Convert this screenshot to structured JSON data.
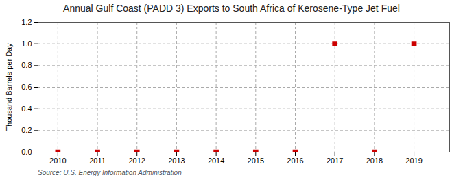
{
  "chart_data": {
    "type": "scatter",
    "title": "Annual Gulf Coast (PADD 3) Exports to South Africa of Kerosene-Type Jet Fuel",
    "ylabel": "Thousand Barrels per Day",
    "annotations": [
      "Source: U.S. Energy Information Administration"
    ],
    "x": [
      2010,
      2011,
      2012,
      2013,
      2014,
      2015,
      2016,
      2017,
      2018,
      2019
    ],
    "values": [
      0.0,
      0.0,
      0.0,
      0.0,
      0.0,
      0.0,
      0.0,
      1.0,
      0.0,
      1.0
    ],
    "color": "#cc0000",
    "marker": "square",
    "xlim": [
      2009.5,
      2019.9
    ],
    "xticks": [
      2010,
      2011,
      2012,
      2013,
      2014,
      2015,
      2016,
      2017,
      2018,
      2019
    ],
    "ylim": [
      0.0,
      1.2
    ],
    "yticks": [
      {
        "value": 0.0,
        "label": "0.0"
      },
      0.2,
      0.4,
      0.6,
      0.8,
      {
        "value": 1.0,
        "label": "1.0"
      },
      1.2
    ],
    "grid": true
  }
}
